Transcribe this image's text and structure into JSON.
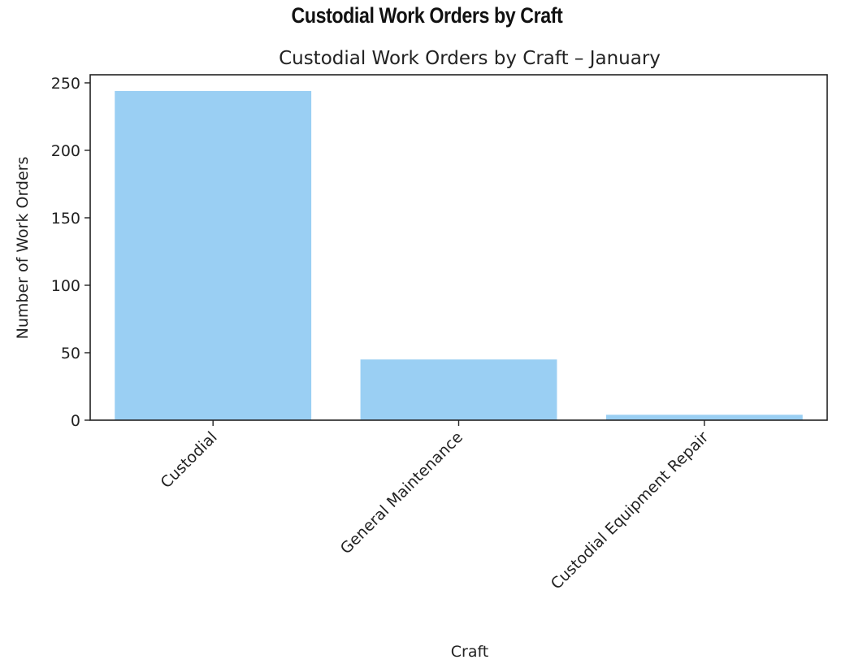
{
  "page_heading": "Custodial Work Orders by Craft",
  "chart_data": {
    "type": "bar",
    "title": "Custodial Work Orders by Craft – January",
    "xlabel": "Craft",
    "ylabel": "Number of Work Orders",
    "categories": [
      "Custodial",
      "General Maintenance",
      "Custodial Equipment Repair"
    ],
    "values": [
      244,
      45,
      4
    ],
    "ylim": [
      0,
      256
    ],
    "yticks": [
      0,
      50,
      100,
      150,
      200,
      250
    ],
    "grid": false,
    "legend": "none",
    "bar_color": "#9acff3",
    "axis_color": "#222222"
  }
}
